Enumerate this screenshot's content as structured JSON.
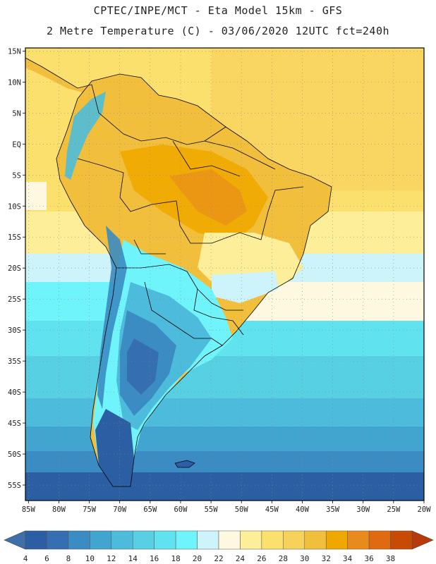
{
  "header": {
    "line1": "CPTEC/INPE/MCT -  Eta Model 15km - GFS",
    "line2": "2 Metre Temperature (C) - 03/06/2020 12UTC fct=240h"
  },
  "map": {
    "lat_labels": [
      "15N",
      "10N",
      "5N",
      "EQ",
      "5S",
      "10S",
      "15S",
      "20S",
      "25S",
      "30S",
      "35S",
      "40S",
      "45S",
      "50S",
      "55S"
    ],
    "lon_labels": [
      "85W",
      "80W",
      "75W",
      "70W",
      "65W",
      "60W",
      "55W",
      "50W",
      "45W",
      "40W",
      "35W",
      "30W",
      "25W",
      "20W"
    ],
    "lat_range": [
      15.5,
      -57.5
    ],
    "lon_range": [
      -85.5,
      -20.0
    ],
    "grid": "dotted"
  },
  "colorbar": {
    "labels": [
      "4",
      "6",
      "8",
      "10",
      "12",
      "14",
      "16",
      "18",
      "20",
      "22",
      "24",
      "26",
      "28",
      "30",
      "32",
      "34",
      "36",
      "38"
    ],
    "low_arrow_color": "#3f6fa8",
    "high_arrow_color": "#b83a0a",
    "colors": [
      "#2b5ea3",
      "#356fb2",
      "#3a8cc2",
      "#42a5d0",
      "#4dbcdc",
      "#58d0e4",
      "#61e2ef",
      "#70f4fb",
      "#cdf3fb",
      "#fef8e0",
      "#fdee9a",
      "#fbe06e",
      "#f6d25b",
      "#f1bf3b",
      "#f0a800",
      "#e98a1c",
      "#df6a10",
      "#c84b05"
    ]
  }
}
